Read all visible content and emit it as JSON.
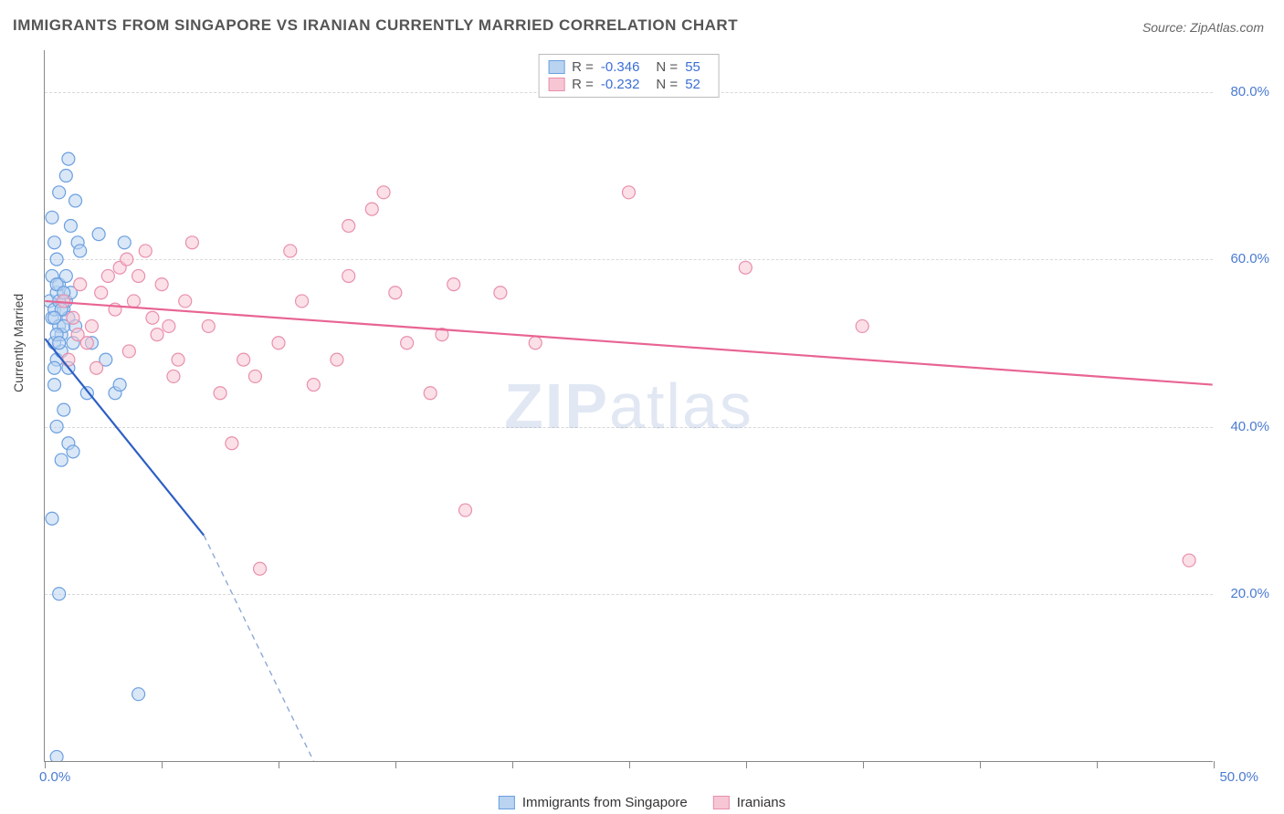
{
  "title": "IMMIGRANTS FROM SINGAPORE VS IRANIAN CURRENTLY MARRIED CORRELATION CHART",
  "source": "Source: ZipAtlas.com",
  "ylabel": "Currently Married",
  "watermark_bold": "ZIP",
  "watermark_rest": "atlas",
  "chart": {
    "type": "scatter",
    "xlim": [
      0,
      50
    ],
    "ylim": [
      0,
      85
    ],
    "x_tick_positions": [
      0,
      5,
      10,
      15,
      20,
      25,
      30,
      35,
      40,
      45,
      50
    ],
    "x_tick_labels": {
      "0": "0.0%",
      "50": "50.0%"
    },
    "y_ticks": [
      20,
      40,
      60,
      80
    ],
    "y_tick_labels": [
      "20.0%",
      "40.0%",
      "60.0%",
      "80.0%"
    ],
    "grid_color": "#d8d8d8",
    "background_color": "#ffffff",
    "axis_color": "#888888",
    "tick_label_color": "#4a7bd0",
    "marker_radius": 7,
    "marker_stroke_width": 1.2,
    "trend_line_width": 2.2,
    "series": [
      {
        "name": "Immigrants from Singapore",
        "fill_color": "#b9d3f0",
        "stroke_color": "#6b9fe0",
        "fill_opacity": 0.55,
        "R": "-0.346",
        "N": "55",
        "trend": {
          "x1": 0,
          "y1": 50.5,
          "x2": 6.8,
          "y2": 27.0,
          "extend_x2": 11.5,
          "extend_y2": 0,
          "line_color": "#2d5fc4",
          "dash_color": "#8da8d6"
        },
        "points": [
          [
            0.2,
            55
          ],
          [
            0.3,
            53
          ],
          [
            0.4,
            54
          ],
          [
            0.5,
            56
          ],
          [
            0.4,
            50
          ],
          [
            0.6,
            52
          ],
          [
            0.5,
            48
          ],
          [
            0.7,
            51
          ],
          [
            0.3,
            58
          ],
          [
            0.8,
            54
          ],
          [
            0.6,
            57
          ],
          [
            0.5,
            60
          ],
          [
            0.9,
            55
          ],
          [
            0.4,
            62
          ],
          [
            1.0,
            53
          ],
          [
            0.7,
            49
          ],
          [
            1.2,
            50
          ],
          [
            0.3,
            65
          ],
          [
            1.1,
            64
          ],
          [
            0.6,
            68
          ],
          [
            0.9,
            70
          ],
          [
            1.3,
            67
          ],
          [
            1.0,
            72
          ],
          [
            1.4,
            62
          ],
          [
            1.5,
            61
          ],
          [
            2.3,
            63
          ],
          [
            0.4,
            45
          ],
          [
            0.8,
            42
          ],
          [
            0.5,
            40
          ],
          [
            1.0,
            38
          ],
          [
            0.7,
            36
          ],
          [
            1.2,
            37
          ],
          [
            0.3,
            29
          ],
          [
            1.8,
            44
          ],
          [
            2.0,
            50
          ],
          [
            2.6,
            48
          ],
          [
            3.0,
            44
          ],
          [
            3.2,
            45
          ],
          [
            3.4,
            62
          ],
          [
            0.6,
            20
          ],
          [
            4.0,
            8
          ],
          [
            0.5,
            0.5
          ],
          [
            0.4,
            47
          ],
          [
            0.6,
            55
          ],
          [
            0.9,
            58
          ],
          [
            1.1,
            56
          ],
          [
            0.8,
            52
          ],
          [
            1.0,
            47
          ],
          [
            0.5,
            51
          ],
          [
            0.7,
            54
          ],
          [
            1.3,
            52
          ],
          [
            0.4,
            53
          ],
          [
            0.6,
            50
          ],
          [
            0.5,
            57
          ],
          [
            0.8,
            56
          ]
        ]
      },
      {
        "name": "Iranians",
        "fill_color": "#f7c6d4",
        "stroke_color": "#e98fac",
        "fill_opacity": 0.55,
        "R": "-0.232",
        "N": "52",
        "trend": {
          "x1": 0,
          "y1": 55.0,
          "x2": 50,
          "y2": 45.0,
          "line_color": "#e86493"
        },
        "points": [
          [
            0.8,
            55
          ],
          [
            1.2,
            53
          ],
          [
            1.5,
            57
          ],
          [
            1.8,
            50
          ],
          [
            2.0,
            52
          ],
          [
            2.4,
            56
          ],
          [
            2.7,
            58
          ],
          [
            3.0,
            54
          ],
          [
            3.2,
            59
          ],
          [
            3.5,
            60
          ],
          [
            3.8,
            55
          ],
          [
            4.0,
            58
          ],
          [
            4.3,
            61
          ],
          [
            4.6,
            53
          ],
          [
            5.0,
            57
          ],
          [
            5.3,
            52
          ],
          [
            5.7,
            48
          ],
          [
            6.0,
            55
          ],
          [
            6.3,
            62
          ],
          [
            7.0,
            52
          ],
          [
            7.5,
            44
          ],
          [
            8.0,
            38
          ],
          [
            8.5,
            48
          ],
          [
            9.0,
            46
          ],
          [
            9.2,
            23
          ],
          [
            10.0,
            50
          ],
          [
            10.5,
            61
          ],
          [
            11.0,
            55
          ],
          [
            11.5,
            45
          ],
          [
            12.5,
            48
          ],
          [
            13.0,
            58
          ],
          [
            13.0,
            64
          ],
          [
            14.0,
            66
          ],
          [
            14.5,
            68
          ],
          [
            15.0,
            56
          ],
          [
            15.5,
            50
          ],
          [
            16.5,
            44
          ],
          [
            17.0,
            51
          ],
          [
            17.5,
            57
          ],
          [
            18.0,
            30
          ],
          [
            19.5,
            56
          ],
          [
            21.0,
            50
          ],
          [
            25.0,
            68
          ],
          [
            30.0,
            59
          ],
          [
            35.0,
            52
          ],
          [
            49.0,
            24
          ],
          [
            2.2,
            47
          ],
          [
            1.0,
            48
          ],
          [
            1.4,
            51
          ],
          [
            3.6,
            49
          ],
          [
            4.8,
            51
          ],
          [
            5.5,
            46
          ]
        ]
      }
    ]
  },
  "legend_bottom": [
    {
      "label": "Immigrants from Singapore",
      "fill": "#b9d3f0",
      "stroke": "#6b9fe0"
    },
    {
      "label": "Iranians",
      "fill": "#f7c6d4",
      "stroke": "#e98fac"
    }
  ]
}
